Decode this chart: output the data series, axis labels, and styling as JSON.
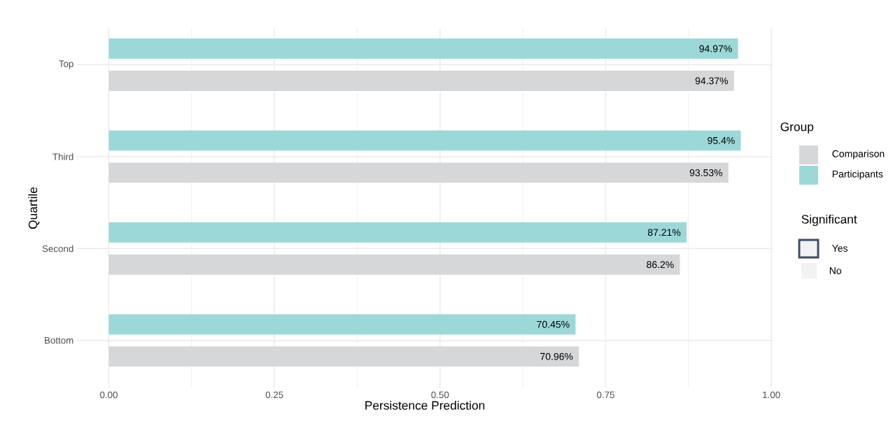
{
  "chart_data": {
    "type": "bar",
    "orientation": "horizontal",
    "xlabel": "Persistence Prediction",
    "ylabel": "Quartile",
    "legend_title": "Group",
    "categories": [
      "Top",
      "Third",
      "Second",
      "Bottom"
    ],
    "series": [
      {
        "name": "Comparison",
        "color": "#d6d7d9",
        "values": [
          0.9437,
          0.9353,
          0.862,
          0.7096
        ],
        "value_labels": [
          "94.37%",
          "93.53%",
          "86.2%",
          "70.96%"
        ]
      },
      {
        "name": "Participants",
        "color": "#9dd8d9",
        "values": [
          0.9497,
          0.954,
          0.8721,
          0.7045
        ],
        "value_labels": [
          "94.97%",
          "95.4%",
          "87.21%",
          "70.45%"
        ]
      }
    ],
    "annotations": [
      "Significant",
      "Yes",
      "No"
    ],
    "xlim": [
      -0.048,
      1.002
    ],
    "xticks": [
      {
        "value": 0,
        "label": "0.00"
      },
      {
        "value": 0.25,
        "label": "0.25"
      },
      {
        "value": 0.5,
        "label": "0.50"
      },
      {
        "value": 0.75,
        "label": "0.75"
      },
      {
        "value": 1,
        "label": "1.00"
      }
    ],
    "grid": true,
    "legend": "right"
  }
}
